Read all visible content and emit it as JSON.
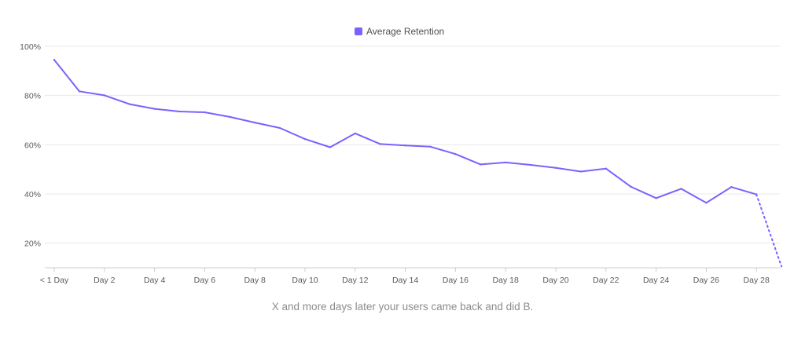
{
  "chart_data": {
    "type": "line",
    "title": "",
    "xlabel": "X and more days later your users came back and did B.",
    "ylabel": "",
    "legend": {
      "position": "top-center"
    },
    "grid": true,
    "ylim": [
      10,
      100
    ],
    "y_ticks": [
      20,
      40,
      60,
      80,
      100
    ],
    "y_tick_labels": [
      "20%",
      "40%",
      "60%",
      "80%",
      "100%"
    ],
    "x_tick_labels": [
      "< 1 Day",
      "Day 2",
      "Day 4",
      "Day 6",
      "Day 8",
      "Day 10",
      "Day 12",
      "Day 14",
      "Day 16",
      "Day 18",
      "Day 20",
      "Day 22",
      "Day 24",
      "Day 26",
      "Day 28"
    ],
    "x_tick_days": [
      0,
      2,
      4,
      6,
      8,
      10,
      12,
      14,
      16,
      18,
      20,
      22,
      24,
      26,
      28
    ],
    "colors": {
      "series": "#7b61ff",
      "grid": "#e8e8e8",
      "axis": "#cccccc"
    },
    "series": [
      {
        "name": "Average Retention",
        "x": [
          0,
          1,
          2,
          3,
          4,
          5,
          6,
          7,
          8,
          9,
          10,
          11,
          12,
          13,
          14,
          15,
          16,
          17,
          18,
          19,
          20,
          21,
          22,
          23,
          24,
          25,
          26,
          27,
          28
        ],
        "values": [
          94.5,
          81.7,
          80.1,
          76.5,
          74.6,
          73.5,
          73.2,
          71.3,
          69.0,
          66.8,
          62.3,
          59.0,
          64.6,
          60.3,
          59.7,
          59.2,
          56.2,
          52.0,
          52.8,
          51.8,
          50.6,
          49.1,
          50.3,
          42.9,
          38.3,
          42.1,
          36.4,
          42.8,
          39.8
        ]
      }
    ],
    "projection": {
      "style": "dotted",
      "x": [
        28,
        29
      ],
      "values": [
        39.8,
        10.5
      ]
    }
  }
}
